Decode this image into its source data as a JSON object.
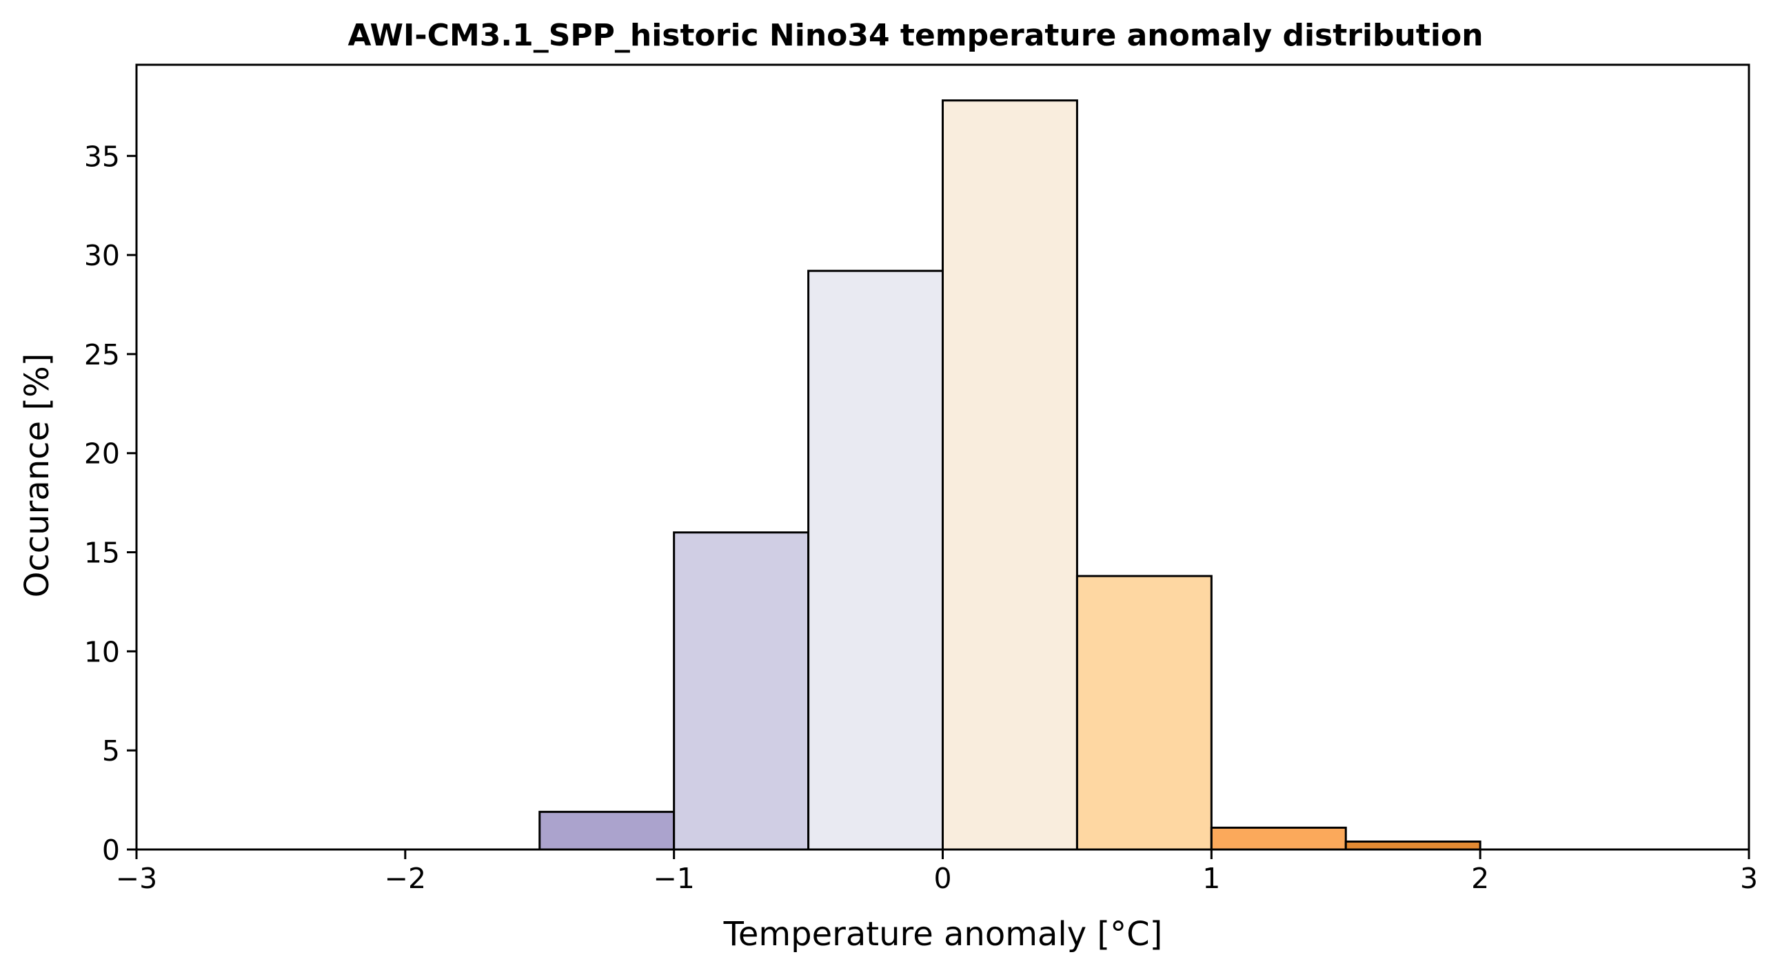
{
  "chart_data": {
    "type": "bar",
    "title": "AWI-CM3.1_SPP_historic Nino34 temperature anomaly distribution",
    "xlabel": "Temperature anomaly [°C]",
    "ylabel": "Occurance [%]",
    "xlim": [
      -3,
      3
    ],
    "ylim": [
      0,
      39.6
    ],
    "xticks": [
      -3,
      -2,
      -1,
      0,
      1,
      2,
      3
    ],
    "xtick_labels": [
      "−3",
      "−2",
      "−1",
      "0",
      "1",
      "2",
      "3"
    ],
    "yticks": [
      0,
      5,
      10,
      15,
      20,
      25,
      30,
      35
    ],
    "ytick_labels": [
      "0",
      "5",
      "10",
      "15",
      "20",
      "25",
      "30",
      "35"
    ],
    "grid": false,
    "bins": [
      {
        "x0": -1.5,
        "x1": -1.0,
        "value": 1.9,
        "color": "#aba3cd"
      },
      {
        "x0": -1.0,
        "x1": -0.5,
        "value": 16.0,
        "color": "#d0cee4"
      },
      {
        "x0": -0.5,
        "x1": 0.0,
        "value": 29.2,
        "color": "#e9eaf2"
      },
      {
        "x0": 0.0,
        "x1": 0.5,
        "value": 37.8,
        "color": "#f9eddd"
      },
      {
        "x0": 0.5,
        "x1": 1.0,
        "value": 13.8,
        "color": "#fed7a2"
      },
      {
        "x0": 1.0,
        "x1": 1.5,
        "value": 1.1,
        "color": "#fba95b"
      },
      {
        "x0": 1.5,
        "x1": 2.0,
        "value": 0.4,
        "color": "#e28a33"
      }
    ]
  }
}
